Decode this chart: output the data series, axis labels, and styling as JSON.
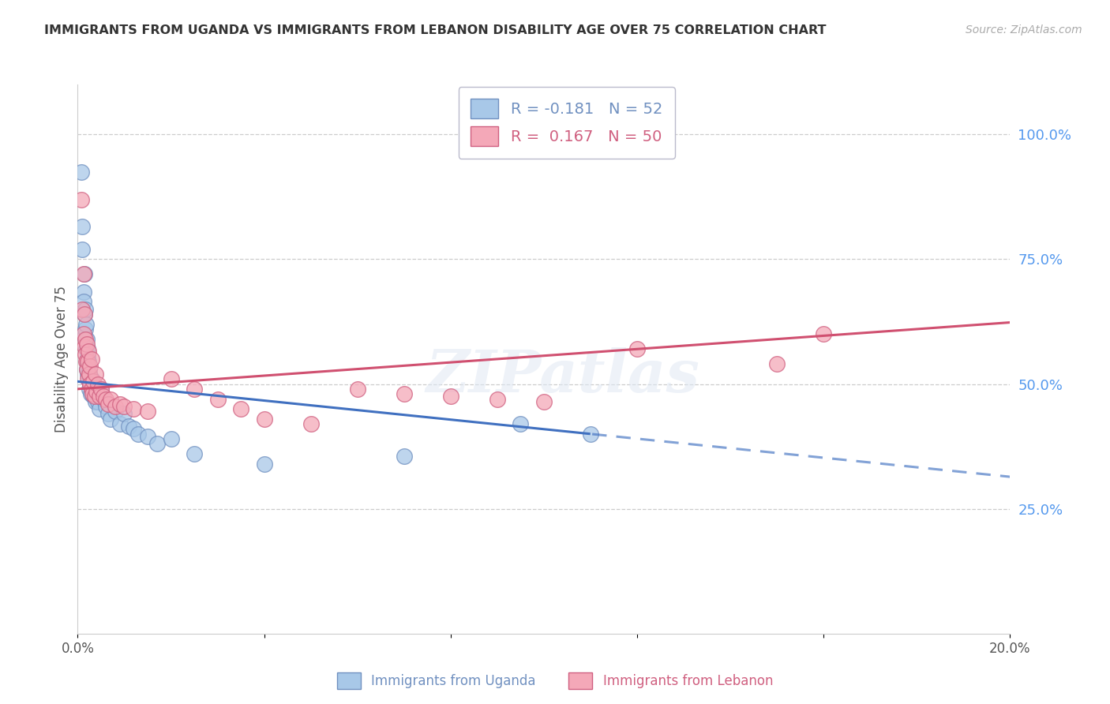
{
  "title": "IMMIGRANTS FROM UGANDA VS IMMIGRANTS FROM LEBANON DISABILITY AGE OVER 75 CORRELATION CHART",
  "source": "Source: ZipAtlas.com",
  "ylabel": "Disability Age Over 75",
  "xlim": [
    0.0,
    0.2
  ],
  "ylim": [
    0.0,
    1.1
  ],
  "uganda_color": "#a8c8e8",
  "lebanon_color": "#f4a8b8",
  "uganda_edge": "#7090c0",
  "lebanon_edge": "#d06080",
  "regression_uganda_color": "#4070c0",
  "regression_lebanon_color": "#d05070",
  "legend_uganda_R": "-0.181",
  "legend_uganda_N": "52",
  "legend_lebanon_R": "0.167",
  "legend_lebanon_N": "50",
  "watermark": "ZIPatlas",
  "background_color": "#ffffff",
  "grid_color": "#cccccc",
  "ug_x": [
    0.0008,
    0.001,
    0.001,
    0.0012,
    0.0013,
    0.0014,
    0.0015,
    0.0015,
    0.0016,
    0.0017,
    0.0018,
    0.0018,
    0.0019,
    0.002,
    0.002,
    0.0021,
    0.0022,
    0.0022,
    0.0023,
    0.0024,
    0.0025,
    0.0025,
    0.0026,
    0.0027,
    0.0028,
    0.003,
    0.0032,
    0.0034,
    0.0036,
    0.0038,
    0.004,
    0.0043,
    0.0046,
    0.005,
    0.0055,
    0.006,
    0.0065,
    0.007,
    0.008,
    0.009,
    0.01,
    0.011,
    0.012,
    0.013,
    0.015,
    0.017,
    0.02,
    0.025,
    0.04,
    0.07,
    0.095,
    0.11
  ],
  "ug_y": [
    0.925,
    0.815,
    0.77,
    0.685,
    0.665,
    0.64,
    0.72,
    0.595,
    0.65,
    0.61,
    0.57,
    0.62,
    0.545,
    0.59,
    0.53,
    0.57,
    0.555,
    0.52,
    0.545,
    0.505,
    0.53,
    0.49,
    0.515,
    0.5,
    0.48,
    0.51,
    0.49,
    0.475,
    0.495,
    0.465,
    0.48,
    0.465,
    0.45,
    0.49,
    0.47,
    0.455,
    0.44,
    0.43,
    0.445,
    0.42,
    0.44,
    0.415,
    0.41,
    0.4,
    0.395,
    0.38,
    0.39,
    0.36,
    0.34,
    0.355,
    0.42,
    0.4
  ],
  "lb_x": [
    0.0008,
    0.001,
    0.0012,
    0.0013,
    0.0014,
    0.0015,
    0.0016,
    0.0017,
    0.0018,
    0.0019,
    0.002,
    0.0021,
    0.0022,
    0.0023,
    0.0025,
    0.0026,
    0.0027,
    0.0029,
    0.003,
    0.0032,
    0.0034,
    0.0036,
    0.0038,
    0.004,
    0.0043,
    0.0046,
    0.005,
    0.0055,
    0.006,
    0.0065,
    0.007,
    0.008,
    0.009,
    0.01,
    0.012,
    0.015,
    0.02,
    0.025,
    0.03,
    0.035,
    0.04,
    0.05,
    0.06,
    0.07,
    0.08,
    0.09,
    0.1,
    0.12,
    0.15,
    0.16
  ],
  "lb_y": [
    0.87,
    0.65,
    0.72,
    0.6,
    0.575,
    0.64,
    0.56,
    0.59,
    0.545,
    0.53,
    0.58,
    0.545,
    0.51,
    0.565,
    0.52,
    0.5,
    0.535,
    0.49,
    0.55,
    0.48,
    0.505,
    0.475,
    0.52,
    0.485,
    0.5,
    0.475,
    0.49,
    0.475,
    0.47,
    0.46,
    0.47,
    0.455,
    0.46,
    0.455,
    0.45,
    0.445,
    0.51,
    0.49,
    0.47,
    0.45,
    0.43,
    0.42,
    0.49,
    0.48,
    0.475,
    0.47,
    0.465,
    0.57,
    0.54,
    0.6
  ]
}
